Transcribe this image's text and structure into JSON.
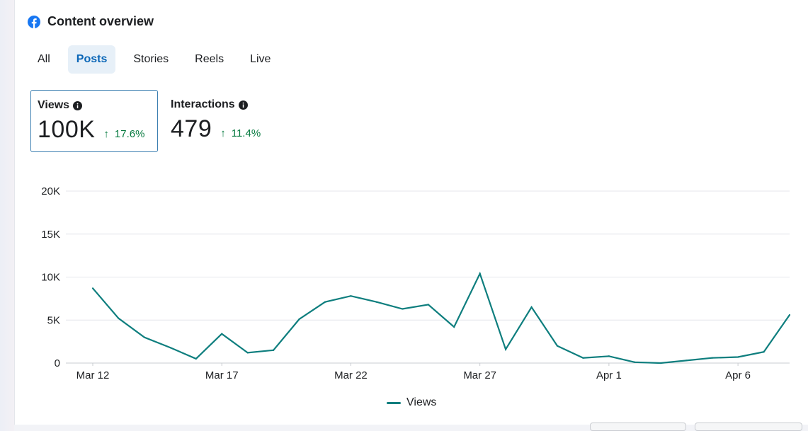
{
  "header": {
    "title": "Content overview",
    "icon": "facebook-icon",
    "brand_color": "#1877f2"
  },
  "tabs": [
    {
      "label": "All",
      "active": false
    },
    {
      "label": "Posts",
      "active": true
    },
    {
      "label": "Stories",
      "active": false
    },
    {
      "label": "Reels",
      "active": false
    },
    {
      "label": "Live",
      "active": false
    }
  ],
  "metrics": {
    "views": {
      "label": "Views",
      "value": "100K",
      "change": "17.6%"
    },
    "interactions": {
      "label": "Interactions",
      "value": "479",
      "change": "11.4%"
    }
  },
  "chart_data": {
    "type": "line",
    "ylim": [
      0,
      20000
    ],
    "y_ticks": [
      0,
      5000,
      10000,
      15000,
      20000
    ],
    "y_tick_labels": [
      "0",
      "5K",
      "10K",
      "15K",
      "20K"
    ],
    "x_tick_labels": [
      "Mar 12",
      "Mar 17",
      "Mar 22",
      "Mar 27",
      "Apr 1",
      "Apr 6"
    ],
    "x_tick_indices": [
      1,
      6,
      11,
      16,
      21,
      26
    ],
    "x_count": 28,
    "grid": true,
    "legend_position": "bottom",
    "series": [
      {
        "name": "Views",
        "color": "#0e7e7e",
        "values": [
          8700,
          5200,
          3000,
          1800,
          500,
          3400,
          1200,
          1500,
          5100,
          7100,
          7800,
          7100,
          6300,
          6800,
          4200,
          10400,
          1600,
          6500,
          2000,
          600,
          800,
          100,
          0,
          300,
          600,
          700,
          1300,
          5600
        ]
      }
    ]
  }
}
